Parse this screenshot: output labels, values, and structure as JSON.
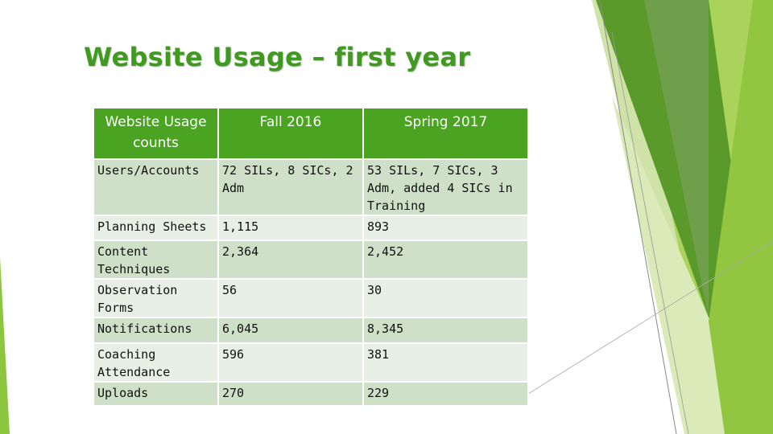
{
  "slide": {
    "title": "Website Usage – first year"
  },
  "table": {
    "headers": [
      "Website Usage counts",
      "Fall 2016",
      "Spring 2017"
    ],
    "rows": [
      [
        "Users/Accounts",
        " 72 SILs, 8 SICs, 2 Adm",
        " 53 SILs, 7 SICs, 3 Adm, added 4 SICs in Training"
      ],
      [
        "Planning Sheets",
        "1,115",
        " 893"
      ],
      [
        "Content Techniques",
        "2,364",
        " 2,452"
      ],
      [
        "Observation Forms",
        "56",
        " 30"
      ],
      [
        "Notifications",
        "6,045",
        "8,345"
      ],
      [
        "Coaching Attendance",
        "596",
        " 381"
      ],
      [
        "Uploads",
        "270",
        " 229"
      ]
    ]
  },
  "colors": {
    "title": "#3f9a1f",
    "header_bg": "#4aa421",
    "row_dark": "#cfe0c8",
    "row_light": "#e8efe5",
    "accent_green_dark": "#4f8f2a",
    "accent_green_light": "#8cc63f"
  }
}
